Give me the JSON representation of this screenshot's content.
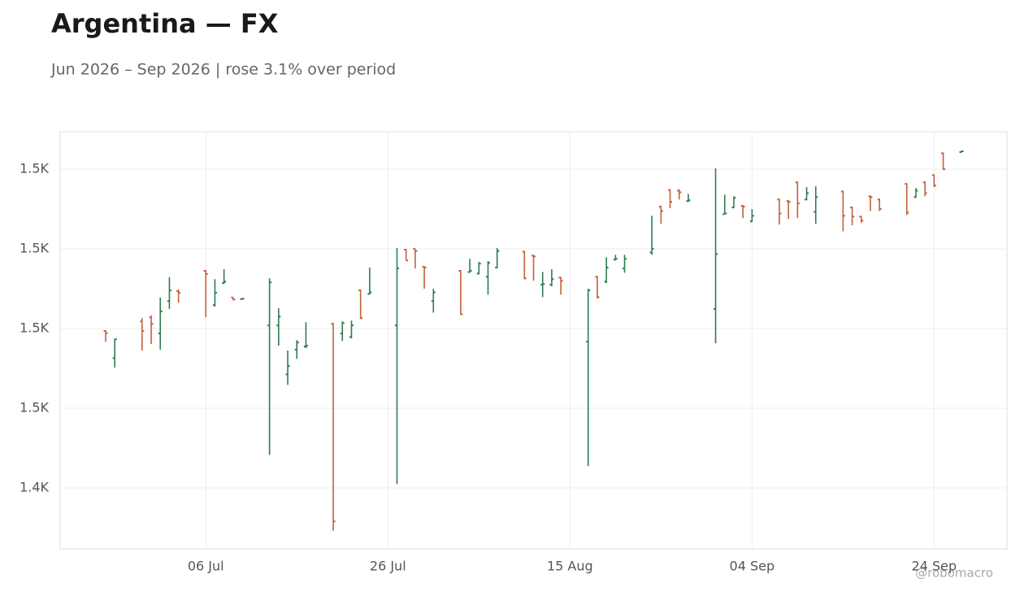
{
  "chart_data": {
    "type": "ohlc",
    "title": "Argentina — FX",
    "subtitle": "Jun 2026 – Sep 2026 | rose 3.1% over period",
    "watermark": "@robomacro",
    "x": [
      "2026-06-25",
      "2026-06-26",
      "2026-06-29",
      "2026-06-30",
      "2026-07-01",
      "2026-07-02",
      "2026-07-03",
      "2026-07-06",
      "2026-07-07",
      "2026-07-08",
      "2026-07-09",
      "2026-07-10",
      "2026-07-13",
      "2026-07-14",
      "2026-07-15",
      "2026-07-16",
      "2026-07-17",
      "2026-07-20",
      "2026-07-21",
      "2026-07-22",
      "2026-07-23",
      "2026-07-24",
      "2026-07-27",
      "2026-07-28",
      "2026-07-29",
      "2026-07-30",
      "2026-07-31",
      "2026-08-03",
      "2026-08-04",
      "2026-08-05",
      "2026-08-06",
      "2026-08-07",
      "2026-08-10",
      "2026-08-11",
      "2026-08-12",
      "2026-08-13",
      "2026-08-14",
      "2026-08-17",
      "2026-08-18",
      "2026-08-19",
      "2026-08-20",
      "2026-08-21",
      "2026-08-24",
      "2026-08-25",
      "2026-08-26",
      "2026-08-27",
      "2026-08-28",
      "2026-08-31",
      "2026-09-01",
      "2026-09-02",
      "2026-09-03",
      "2026-09-04",
      "2026-09-07",
      "2026-09-08",
      "2026-09-09",
      "2026-09-10",
      "2026-09-11",
      "2026-09-14",
      "2026-09-15",
      "2026-09-16",
      "2026-09-17",
      "2026-09-18",
      "2026-09-21",
      "2026-09-22",
      "2026-09-23",
      "2026-09-24",
      "2026-09-25",
      "2026-09-27"
    ],
    "open": [
      1479.4,
      1472.6,
      1481.8,
      1482.8,
      1478.8,
      1486.9,
      1489.4,
      1494.5,
      1485.9,
      1491.4,
      1487.8,
      1487.4,
      1480.8,
      1480.8,
      1468.5,
      1474.7,
      1475.5,
      1481.2,
      1478.8,
      1477.9,
      1489.6,
      1488.7,
      1480.8,
      1499.8,
      1500.0,
      1495.5,
      1486.9,
      1494.5,
      1494.2,
      1493.8,
      1493.0,
      1495.3,
      1499.3,
      1498.3,
      1491.0,
      1491.0,
      1492.8,
      1476.7,
      1493.0,
      1491.8,
      1497.3,
      1495.1,
      1499.1,
      1510.6,
      1514.8,
      1514.6,
      1512.0,
      1484.9,
      1508.7,
      1510.4,
      1510.8,
      1506.9,
      1512.4,
      1512.0,
      1516.7,
      1512.4,
      1509.3,
      1514.4,
      1510.4,
      1508.1,
      1513.2,
      1512.4,
      1516.3,
      1513.0,
      1516.7,
      1518.5,
      1524.0,
      1524.3
    ],
    "high": [
      1479.6,
      1477.5,
      1482.6,
      1483.3,
      1487.8,
      1492.9,
      1489.8,
      1494.7,
      1492.4,
      1494.9,
      1487.8,
      1487.6,
      1492.6,
      1485.1,
      1474.5,
      1477.1,
      1481.6,
      1481.4,
      1481.8,
      1482.0,
      1489.8,
      1495.3,
      1500.2,
      1500.0,
      1500.0,
      1495.7,
      1490.0,
      1494.7,
      1497.5,
      1496.7,
      1496.9,
      1500.2,
      1499.5,
      1498.5,
      1494.2,
      1494.9,
      1493.0,
      1490.0,
      1493.2,
      1497.9,
      1498.5,
      1498.5,
      1508.3,
      1510.8,
      1515.0,
      1515.0,
      1513.8,
      1520.2,
      1513.6,
      1513.2,
      1511.0,
      1510.0,
      1512.6,
      1512.2,
      1516.9,
      1515.5,
      1515.7,
      1514.6,
      1510.6,
      1508.3,
      1513.4,
      1512.6,
      1516.5,
      1515.3,
      1516.9,
      1518.7,
      1524.2,
      1524.6
    ],
    "low": [
      1476.7,
      1470.2,
      1474.5,
      1476.1,
      1474.7,
      1484.9,
      1486.5,
      1482.9,
      1485.5,
      1491.2,
      1487.1,
      1487.3,
      1448.3,
      1475.7,
      1465.9,
      1472.4,
      1475.1,
      1429.3,
      1476.9,
      1477.5,
      1482.4,
      1488.5,
      1441.0,
      1497.1,
      1495.1,
      1490.0,
      1484.0,
      1483.4,
      1494.0,
      1493.6,
      1488.5,
      1495.1,
      1492.4,
      1492.0,
      1487.9,
      1490.6,
      1488.5,
      1445.5,
      1487.5,
      1491.4,
      1497.1,
      1494.0,
      1498.5,
      1506.3,
      1510.2,
      1512.4,
      1511.8,
      1476.3,
      1508.7,
      1510.2,
      1507.7,
      1506.7,
      1506.1,
      1507.5,
      1507.7,
      1512.2,
      1506.3,
      1504.4,
      1505.9,
      1506.5,
      1509.5,
      1509.5,
      1508.5,
      1512.8,
      1513.2,
      1515.5,
      1519.8,
      1524.2
    ],
    "close": [
      1478.8,
      1477.3,
      1479.4,
      1481.2,
      1484.3,
      1489.6,
      1489.0,
      1493.7,
      1489.0,
      1491.8,
      1487.3,
      1487.5,
      1491.6,
      1483.0,
      1470.6,
      1476.5,
      1475.7,
      1431.6,
      1481.4,
      1480.8,
      1482.6,
      1489.1,
      1495.1,
      1497.1,
      1499.5,
      1495.3,
      1489.1,
      1483.6,
      1494.5,
      1496.3,
      1496.5,
      1499.5,
      1492.6,
      1498.1,
      1491.2,
      1492.4,
      1492.0,
      1489.6,
      1487.9,
      1495.3,
      1497.5,
      1497.5,
      1500.0,
      1509.5,
      1511.8,
      1514.2,
      1512.2,
      1498.7,
      1508.9,
      1512.8,
      1510.6,
      1508.3,
      1508.9,
      1511.8,
      1511.4,
      1514.0,
      1513.0,
      1508.3,
      1508.1,
      1507.1,
      1513.0,
      1510.0,
      1509.1,
      1514.6,
      1514.0,
      1515.9,
      1520.0,
      1524.5
    ],
    "up_color": "#2e7d4f",
    "down_color": "#c2613d",
    "xlim": [
      "2026-06-20",
      "2026-10-02"
    ],
    "xticks": [
      {
        "value": "2026-07-06",
        "label": "06 Jul"
      },
      {
        "value": "2026-07-26",
        "label": "26 Jul"
      },
      {
        "value": "2026-08-15",
        "label": "15 Aug"
      },
      {
        "value": "2026-09-04",
        "label": "04 Sep"
      },
      {
        "value": "2026-09-24",
        "label": "24 Sep"
      }
    ],
    "ylim": [
      1424.7,
      1529.4
    ],
    "yticks": [
      {
        "value": 1440,
        "label": "1.4K"
      },
      {
        "value": 1460,
        "label": "1.5K"
      },
      {
        "value": 1480,
        "label": "1.5K"
      },
      {
        "value": 1500,
        "label": "1.5K"
      },
      {
        "value": 1520,
        "label": "1.5K"
      }
    ],
    "grid": true
  }
}
